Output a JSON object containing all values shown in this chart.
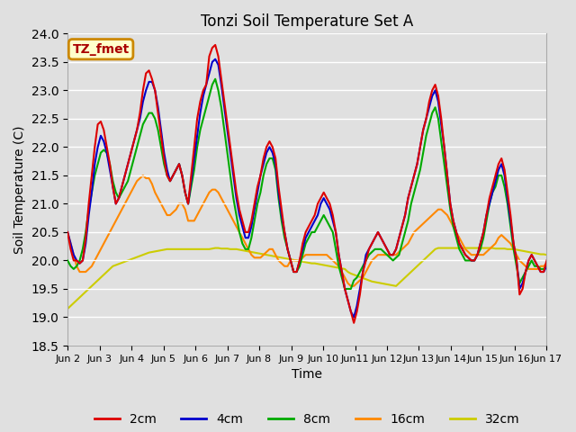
{
  "title": "Tonzi Soil Temperature Set A",
  "xlabel": "Time",
  "ylabel": "Soil Temperature (C)",
  "ylim": [
    18.5,
    24.0
  ],
  "yticks": [
    18.5,
    19.0,
    19.5,
    20.0,
    20.5,
    21.0,
    21.5,
    22.0,
    22.5,
    23.0,
    23.5,
    24.0
  ],
  "bg_color": "#e0e0e0",
  "plot_bg_color": "#e0e0e0",
  "grid_color": "#ffffff",
  "annotation_text": "TZ_fmet",
  "annotation_bg": "#ffffcc",
  "annotation_border": "#cc8800",
  "annotation_text_color": "#aa0000",
  "series": {
    "2cm": {
      "color": "#dd0000",
      "lw": 1.5
    },
    "4cm": {
      "color": "#0000cc",
      "lw": 1.5
    },
    "8cm": {
      "color": "#00aa00",
      "lw": 1.5
    },
    "16cm": {
      "color": "#ff8800",
      "lw": 1.5
    },
    "32cm": {
      "color": "#cccc00",
      "lw": 1.5
    }
  },
  "x_tick_labels": [
    "Jun 2",
    "Jun 3",
    "Jun 4",
    "Jun 5",
    "Jun 6",
    "Jun 7",
    "Jun 8",
    "Jun 9",
    "Jun 10",
    "Jun11",
    "Jun 12",
    "Jun 13",
    "Jun 14",
    "Jun 15",
    "Jun 16",
    "Jun 17"
  ],
  "num_points": 160,
  "days": 15,
  "data_2cm": [
    20.5,
    20.2,
    20.0,
    20.0,
    19.95,
    20.0,
    20.4,
    21.0,
    21.5,
    22.0,
    22.4,
    22.45,
    22.3,
    22.0,
    21.7,
    21.3,
    21.0,
    21.1,
    21.3,
    21.5,
    21.7,
    21.9,
    22.1,
    22.3,
    22.6,
    23.0,
    23.3,
    23.35,
    23.2,
    23.0,
    22.6,
    22.2,
    21.8,
    21.5,
    21.4,
    21.5,
    21.6,
    21.7,
    21.5,
    21.2,
    21.0,
    21.5,
    22.0,
    22.5,
    22.8,
    23.0,
    23.1,
    23.6,
    23.75,
    23.8,
    23.6,
    23.2,
    22.8,
    22.4,
    22.0,
    21.6,
    21.2,
    20.9,
    20.7,
    20.5,
    20.5,
    20.7,
    21.0,
    21.3,
    21.5,
    21.8,
    22.0,
    22.1,
    22.0,
    21.8,
    21.3,
    20.9,
    20.5,
    20.2,
    20.0,
    19.8,
    19.8,
    20.0,
    20.3,
    20.5,
    20.6,
    20.7,
    20.8,
    21.0,
    21.1,
    21.2,
    21.1,
    21.0,
    20.8,
    20.5,
    20.1,
    19.8,
    19.5,
    19.3,
    19.1,
    18.9,
    19.1,
    19.4,
    19.8,
    20.0,
    20.2,
    20.3,
    20.4,
    20.5,
    20.4,
    20.3,
    20.2,
    20.1,
    20.1,
    20.2,
    20.4,
    20.6,
    20.8,
    21.1,
    21.3,
    21.5,
    21.7,
    22.0,
    22.3,
    22.5,
    22.8,
    23.0,
    23.1,
    22.9,
    22.5,
    22.0,
    21.5,
    21.0,
    20.7,
    20.5,
    20.3,
    20.2,
    20.1,
    20.05,
    20.0,
    20.0,
    20.1,
    20.3,
    20.5,
    20.8,
    21.1,
    21.3,
    21.5,
    21.7,
    21.8,
    21.6,
    21.2,
    20.8,
    20.3,
    20.0,
    19.4,
    19.5,
    19.8,
    20.0,
    20.1,
    20.0,
    19.9,
    19.8,
    19.8,
    20.0
  ],
  "data_4cm": [
    20.5,
    20.3,
    20.1,
    20.0,
    19.95,
    20.0,
    20.3,
    20.8,
    21.2,
    21.7,
    22.0,
    22.2,
    22.1,
    21.9,
    21.6,
    21.3,
    21.0,
    21.1,
    21.3,
    21.5,
    21.7,
    21.9,
    22.1,
    22.3,
    22.5,
    22.8,
    23.0,
    23.15,
    23.15,
    23.0,
    22.7,
    22.3,
    21.9,
    21.6,
    21.4,
    21.5,
    21.6,
    21.7,
    21.5,
    21.2,
    21.0,
    21.4,
    21.8,
    22.2,
    22.6,
    22.9,
    23.1,
    23.3,
    23.5,
    23.55,
    23.45,
    23.1,
    22.7,
    22.3,
    21.9,
    21.5,
    21.1,
    20.8,
    20.6,
    20.4,
    20.4,
    20.6,
    20.9,
    21.2,
    21.5,
    21.7,
    21.9,
    22.0,
    21.9,
    21.7,
    21.2,
    20.8,
    20.5,
    20.2,
    20.0,
    19.8,
    19.8,
    20.0,
    20.2,
    20.4,
    20.5,
    20.6,
    20.7,
    20.8,
    21.0,
    21.1,
    21.0,
    20.9,
    20.7,
    20.5,
    20.1,
    19.8,
    19.5,
    19.3,
    19.1,
    19.0,
    19.2,
    19.5,
    19.8,
    20.1,
    20.2,
    20.3,
    20.4,
    20.5,
    20.4,
    20.3,
    20.2,
    20.1,
    20.1,
    20.2,
    20.4,
    20.6,
    20.8,
    21.1,
    21.3,
    21.5,
    21.7,
    22.0,
    22.3,
    22.5,
    22.7,
    22.9,
    23.0,
    22.8,
    22.4,
    22.0,
    21.5,
    21.0,
    20.7,
    20.5,
    20.3,
    20.2,
    20.1,
    20.05,
    20.0,
    20.0,
    20.1,
    20.3,
    20.5,
    20.8,
    21.0,
    21.2,
    21.4,
    21.6,
    21.7,
    21.5,
    21.1,
    20.7,
    20.3,
    20.0,
    19.5,
    19.6,
    19.8,
    20.0,
    20.1,
    20.0,
    19.9,
    19.8,
    19.8,
    19.9
  ],
  "data_8cm": [
    20.0,
    19.9,
    19.85,
    19.9,
    20.0,
    20.2,
    20.5,
    20.9,
    21.2,
    21.5,
    21.7,
    21.9,
    21.95,
    21.9,
    21.7,
    21.4,
    21.2,
    21.1,
    21.2,
    21.3,
    21.4,
    21.6,
    21.8,
    22.0,
    22.2,
    22.4,
    22.5,
    22.6,
    22.6,
    22.5,
    22.3,
    22.0,
    21.7,
    21.5,
    21.4,
    21.5,
    21.6,
    21.7,
    21.5,
    21.2,
    21.0,
    21.3,
    21.6,
    22.0,
    22.3,
    22.5,
    22.7,
    22.9,
    23.1,
    23.2,
    23.0,
    22.7,
    22.3,
    21.9,
    21.5,
    21.1,
    20.8,
    20.5,
    20.3,
    20.2,
    20.2,
    20.4,
    20.7,
    21.0,
    21.2,
    21.5,
    21.7,
    21.8,
    21.8,
    21.6,
    21.1,
    20.7,
    20.4,
    20.2,
    20.0,
    19.8,
    19.8,
    19.9,
    20.1,
    20.3,
    20.4,
    20.5,
    20.5,
    20.6,
    20.7,
    20.8,
    20.7,
    20.6,
    20.5,
    20.2,
    19.9,
    19.7,
    19.5,
    19.5,
    19.5,
    19.65,
    19.7,
    19.8,
    19.9,
    20.0,
    20.1,
    20.15,
    20.2,
    20.2,
    20.2,
    20.15,
    20.1,
    20.05,
    20.0,
    20.05,
    20.1,
    20.3,
    20.5,
    20.7,
    21.0,
    21.2,
    21.4,
    21.6,
    21.9,
    22.2,
    22.4,
    22.6,
    22.7,
    22.5,
    22.1,
    21.7,
    21.3,
    20.9,
    20.6,
    20.4,
    20.2,
    20.1,
    20.0,
    20.0,
    20.0,
    20.0,
    20.1,
    20.2,
    20.4,
    20.7,
    21.0,
    21.2,
    21.3,
    21.5,
    21.5,
    21.3,
    21.0,
    20.6,
    20.2,
    19.9,
    19.6,
    19.7,
    19.8,
    19.9,
    20.0,
    19.9,
    19.9,
    19.85,
    19.85,
    19.9
  ],
  "data_16cm": [
    20.5,
    20.3,
    20.1,
    19.9,
    19.8,
    19.8,
    19.8,
    19.85,
    19.9,
    20.0,
    20.1,
    20.2,
    20.3,
    20.4,
    20.5,
    20.6,
    20.7,
    20.8,
    20.9,
    21.0,
    21.1,
    21.2,
    21.3,
    21.4,
    21.45,
    21.5,
    21.45,
    21.45,
    21.35,
    21.2,
    21.1,
    21.0,
    20.9,
    20.8,
    20.8,
    20.85,
    20.9,
    21.0,
    21.0,
    20.9,
    20.7,
    20.7,
    20.7,
    20.8,
    20.9,
    21.0,
    21.1,
    21.2,
    21.25,
    21.25,
    21.2,
    21.1,
    21.0,
    20.9,
    20.8,
    20.7,
    20.6,
    20.5,
    20.4,
    20.3,
    20.2,
    20.1,
    20.05,
    20.05,
    20.05,
    20.1,
    20.15,
    20.2,
    20.2,
    20.1,
    20.0,
    19.95,
    19.9,
    19.9,
    20.0,
    20.0,
    20.0,
    20.0,
    20.05,
    20.1,
    20.1,
    20.1,
    20.1,
    20.1,
    20.1,
    20.1,
    20.1,
    20.05,
    20.0,
    19.95,
    19.9,
    19.8,
    19.7,
    19.6,
    19.55,
    19.55,
    19.6,
    19.65,
    19.7,
    19.8,
    19.9,
    20.0,
    20.05,
    20.1,
    20.1,
    20.1,
    20.1,
    20.1,
    20.1,
    20.1,
    20.15,
    20.2,
    20.25,
    20.3,
    20.4,
    20.5,
    20.55,
    20.6,
    20.65,
    20.7,
    20.75,
    20.8,
    20.85,
    20.9,
    20.9,
    20.85,
    20.8,
    20.7,
    20.6,
    20.5,
    20.4,
    20.3,
    20.2,
    20.15,
    20.1,
    20.1,
    20.1,
    20.1,
    20.1,
    20.15,
    20.2,
    20.25,
    20.3,
    20.4,
    20.45,
    20.4,
    20.35,
    20.3,
    20.2,
    20.1,
    20.0,
    19.95,
    19.9,
    19.85,
    19.85,
    19.85,
    19.85,
    19.9,
    19.9,
    19.95
  ],
  "data_32cm": [
    19.15,
    19.2,
    19.25,
    19.3,
    19.35,
    19.4,
    19.45,
    19.5,
    19.55,
    19.6,
    19.65,
    19.7,
    19.75,
    19.8,
    19.85,
    19.9,
    19.92,
    19.94,
    19.96,
    19.98,
    20.0,
    20.02,
    20.04,
    20.06,
    20.08,
    20.1,
    20.12,
    20.14,
    20.15,
    20.16,
    20.17,
    20.18,
    20.19,
    20.2,
    20.2,
    20.2,
    20.2,
    20.2,
    20.2,
    20.2,
    20.2,
    20.2,
    20.2,
    20.2,
    20.2,
    20.2,
    20.2,
    20.2,
    20.21,
    20.22,
    20.22,
    20.21,
    20.21,
    20.21,
    20.2,
    20.2,
    20.2,
    20.19,
    20.18,
    20.17,
    20.16,
    20.15,
    20.14,
    20.13,
    20.12,
    20.11,
    20.1,
    20.09,
    20.08,
    20.07,
    20.06,
    20.05,
    20.04,
    20.03,
    20.02,
    20.01,
    20.0,
    19.99,
    19.98,
    19.97,
    19.96,
    19.95,
    19.95,
    19.94,
    19.93,
    19.92,
    19.91,
    19.9,
    19.89,
    19.88,
    19.87,
    19.86,
    19.85,
    19.8,
    19.77,
    19.75,
    19.73,
    19.71,
    19.69,
    19.67,
    19.65,
    19.63,
    19.62,
    19.61,
    19.6,
    19.59,
    19.58,
    19.57,
    19.56,
    19.55,
    19.6,
    19.65,
    19.7,
    19.75,
    19.8,
    19.85,
    19.9,
    19.95,
    20.0,
    20.05,
    20.1,
    20.15,
    20.2,
    20.22,
    20.22,
    20.22,
    20.22,
    20.22,
    20.22,
    20.22,
    20.22,
    20.22,
    20.22,
    20.22,
    20.22,
    20.22,
    20.22,
    20.22,
    20.22,
    20.22,
    20.22,
    20.22,
    20.21,
    20.21,
    20.21,
    20.21,
    20.2,
    20.2,
    20.2,
    20.19,
    20.18,
    20.17,
    20.16,
    20.15,
    20.14,
    20.13,
    20.12,
    20.11,
    20.11,
    20.1
  ]
}
